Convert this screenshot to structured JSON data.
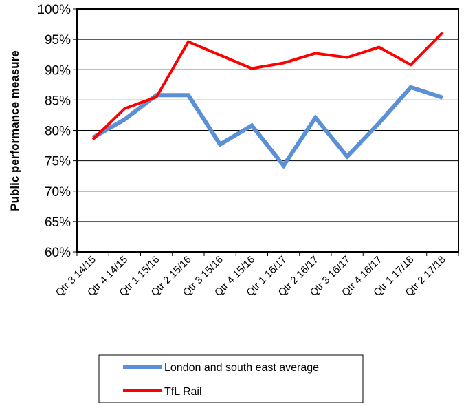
{
  "chart_data": {
    "type": "line",
    "title": "",
    "xlabel": "",
    "ylabel": "Public performance measure",
    "ylim": [
      60,
      100
    ],
    "y_ticks": [
      "60%",
      "65%",
      "70%",
      "75%",
      "80%",
      "85%",
      "90%",
      "95%",
      "100%"
    ],
    "y_tick_values": [
      60,
      65,
      70,
      75,
      80,
      85,
      90,
      95,
      100
    ],
    "grid": "horizontal",
    "legend_position": "bottom",
    "categories": [
      "Qtr 3 14/15",
      "Qtr 4 14/15",
      "Qtr 1 15/16",
      "Qtr 2 15/16",
      "Qtr 3 15/16",
      "Qtr 4 15/16",
      "Qtr 1 16/17",
      "Qtr 2 16/17",
      "Qtr 3 16/17",
      "Qtr 4 16/17",
      "Qtr 1 17/18",
      "Qtr 2 17/18"
    ],
    "series": [
      {
        "name": "London and south east average",
        "color": "#5b8fd6",
        "values": [
          78.8,
          81.8,
          85.8,
          85.8,
          77.7,
          80.8,
          74.2,
          82.1,
          75.7,
          81.2,
          87.1,
          85.4
        ]
      },
      {
        "name": "TfL Rail",
        "color": "#ff0000",
        "values": [
          78.5,
          83.6,
          85.5,
          94.6,
          92.4,
          90.2,
          91.1,
          92.7,
          92.0,
          93.7,
          90.8,
          96.1
        ]
      }
    ]
  }
}
